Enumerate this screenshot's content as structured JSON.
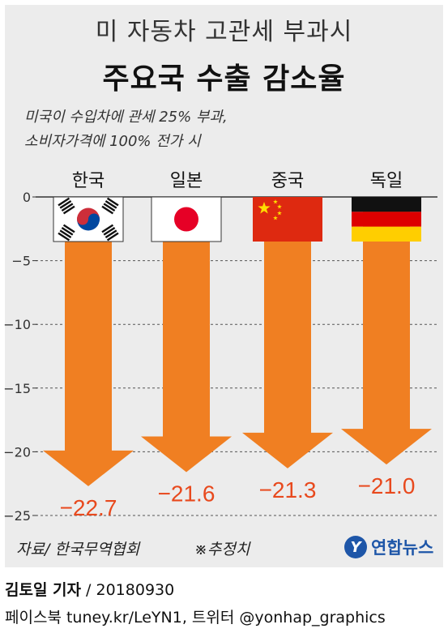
{
  "header": {
    "subtitle": "미 자동차 고관세 부과시",
    "title": "주요국 수출 감소율"
  },
  "note": {
    "line1": "미국이 수입차에 관세 25% 부과,",
    "line2": "소비자가격에 100% 전가 시"
  },
  "chart_data": {
    "type": "bar",
    "categories": [
      "한국",
      "일본",
      "중국",
      "독일"
    ],
    "values": [
      -22.7,
      -21.6,
      -21.3,
      -21.0
    ],
    "value_labels": [
      "−22.7",
      "−21.6",
      "−21.3",
      "−21.0"
    ],
    "ylim": [
      -25,
      0
    ],
    "yticks": [
      0,
      -5,
      -10,
      -15,
      -20,
      -25
    ],
    "ytick_labels": [
      "0",
      "−5",
      "−10",
      "−15",
      "−20",
      "−25"
    ],
    "grid": true,
    "bar_style": "downward-arrow",
    "colors": {
      "bar": "#f07f22",
      "value_text": "#e8491d"
    },
    "flags": [
      "south-korea-flag",
      "japan-flag",
      "china-flag",
      "germany-flag"
    ]
  },
  "footer": {
    "source": "자료/ 한국무역협회",
    "estimate": "※추정치",
    "logo_mark": "Y",
    "logo_text": "연합뉴스",
    "author": "김토일 기자",
    "date": " / 20180930",
    "social": "페이스북 tuney.kr/LeYN1, 트위터 @yonhap_graphics"
  }
}
